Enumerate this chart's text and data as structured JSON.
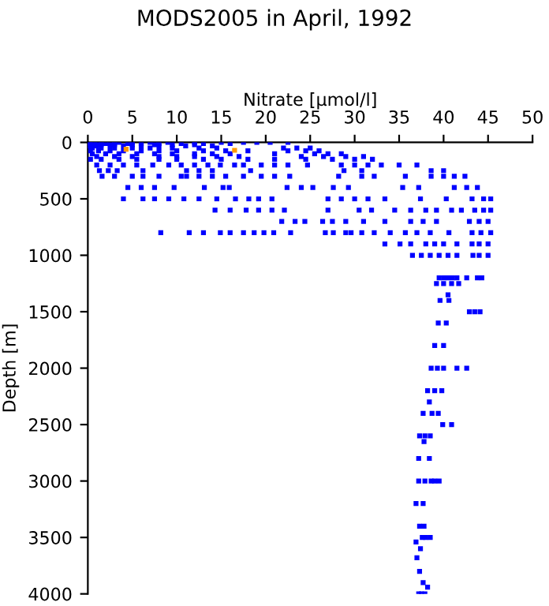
{
  "chart_data": {
    "type": "scatter",
    "title": "MODS2005 in April, 1992",
    "xlabel": "Nitrate [µmol/l]",
    "ylabel": "Depth [m]",
    "xlim": [
      0,
      50
    ],
    "xticks": [
      0,
      5,
      10,
      15,
      20,
      25,
      30,
      35,
      40,
      45,
      50
    ],
    "ylim": [
      4000,
      0
    ],
    "yticks": [
      0,
      500,
      1000,
      1500,
      2000,
      2500,
      3000,
      3500,
      4000
    ],
    "grid": false,
    "marker": "square",
    "series": [
      {
        "color": "#0000ff",
        "x": [
          0.2,
          0.8,
          1.5,
          2.5,
          3.5,
          5,
          7,
          9,
          12,
          15,
          17.5,
          19,
          20.5,
          22.5,
          0.3,
          1,
          2,
          3,
          4.5,
          6,
          8,
          10.5,
          13,
          16,
          0.5,
          1.5,
          3,
          5,
          7.5,
          9.5,
          12,
          0.2,
          1,
          2.5,
          4,
          6,
          8,
          11,
          14,
          0.5,
          1.5,
          3,
          5,
          7,
          9.5,
          12.5,
          14.5,
          22,
          23.5,
          25,
          0.3,
          1.2,
          2.5,
          4,
          6,
          8,
          10,
          13,
          15.5,
          18,
          22.5,
          24.5,
          26,
          0.5,
          2,
          3.5,
          5.5,
          7.5,
          9.5,
          12,
          14,
          16,
          21,
          25.5,
          27,
          28.5,
          1,
          3,
          5,
          8,
          10,
          12,
          14.5,
          17,
          24,
          26.5,
          29,
          31,
          0.3,
          1.5,
          3.5,
          5.5,
          8,
          10,
          13,
          15,
          18,
          21,
          24.5,
          27.5,
          30,
          32,
          1,
          2.5,
          4,
          5.5,
          7.3,
          9.1,
          10.5,
          12,
          13.5,
          14.9,
          16.5,
          17.5,
          19.5,
          21,
          22.5,
          24.7,
          28.5,
          30,
          31.5,
          33,
          35,
          37,
          1.3,
          2.3,
          3.3,
          6.2,
          11.1,
          12.5,
          14,
          18.3,
          28.8,
          30.8,
          38.6,
          40,
          1.6,
          3,
          5,
          6.2,
          8,
          10.5,
          11.1,
          12.5,
          14,
          15.5,
          17.5,
          19.5,
          21,
          22.7,
          28.2,
          30.8,
          32.2,
          35.7,
          38.6,
          40,
          41.2,
          42.4,
          4.5,
          6,
          7.5,
          9.7,
          13.1,
          15.2,
          15.9,
          22.4,
          24,
          25.3,
          27.6,
          29.3,
          35.4,
          37.2,
          41.2,
          42.6,
          43.8,
          4,
          6.2,
          7.5,
          9.1,
          10.8,
          12.5,
          14.5,
          16.6,
          18.1,
          19.2,
          20.7,
          27,
          28.5,
          30,
          31.5,
          33.4,
          37.4,
          40.3,
          43.2,
          44.5,
          45.3,
          14.3,
          16,
          17.8,
          19.2,
          20.7,
          22.1,
          27,
          30.5,
          31.9,
          34.5,
          36.3,
          38,
          39.2,
          40.9,
          42,
          43.5,
          44.5,
          45.3,
          21.8,
          23.3,
          24.4,
          26.4,
          27.5,
          29,
          31,
          33.4,
          36.3,
          37.7,
          39.2,
          42.9,
          44,
          45,
          8.2,
          11.4,
          13,
          14.9,
          16,
          17.5,
          18.7,
          19.8,
          20.9,
          22.8,
          26.7,
          27.6,
          29,
          29.6,
          30.8,
          32.2,
          34,
          35.7,
          37,
          38.5,
          40.6,
          43.2,
          44.2,
          45.3,
          33.4,
          35.1,
          36.3,
          38,
          39,
          40,
          41.5,
          43.2,
          44,
          45,
          36.5,
          37.5,
          38.5,
          39.5,
          40.5,
          41.5,
          43.3,
          44,
          45,
          39.5,
          40,
          40.5,
          41,
          41.5,
          42.6,
          43.8,
          44.3,
          39.2,
          40,
          40.9,
          41.7,
          40.5,
          39.6,
          40.6,
          42.9,
          43.5,
          44.1,
          39.4,
          40.3,
          39,
          40,
          38.6,
          39.3,
          40,
          41.5,
          42.6,
          38.2,
          39,
          39.8,
          38.4,
          37.7,
          38.7,
          39.4,
          39.9,
          40.9,
          37.3,
          37.9,
          38.5,
          37.8,
          37.2,
          38.4,
          37.2,
          37.9,
          38.6,
          39,
          39.5,
          36.9,
          37.7,
          37.3,
          37.8,
          37.6,
          38,
          38.5,
          36.9,
          37.4,
          37,
          37.3,
          37.7,
          38.2,
          37.2,
          37.5,
          37.9
        ],
        "values": [
          0,
          0,
          0,
          0,
          0,
          0,
          0,
          0,
          0,
          0,
          0,
          0,
          0,
          0,
          10,
          10,
          10,
          10,
          10,
          10,
          10,
          10,
          10,
          10,
          20,
          20,
          20,
          20,
          20,
          20,
          20,
          30,
          30,
          30,
          30,
          30,
          30,
          30,
          30,
          50,
          50,
          50,
          50,
          50,
          50,
          50,
          50,
          50,
          50,
          50,
          75,
          75,
          75,
          75,
          75,
          75,
          75,
          75,
          75,
          75,
          75,
          75,
          75,
          100,
          100,
          100,
          100,
          100,
          100,
          100,
          100,
          100,
          100,
          100,
          100,
          100,
          125,
          125,
          125,
          125,
          125,
          125,
          125,
          125,
          125,
          125,
          125,
          125,
          150,
          150,
          150,
          150,
          150,
          150,
          150,
          150,
          150,
          150,
          150,
          150,
          150,
          150,
          200,
          200,
          200,
          200,
          200,
          200,
          200,
          200,
          200,
          200,
          200,
          200,
          200,
          200,
          200,
          200,
          200,
          200,
          200,
          200,
          200,
          200,
          250,
          250,
          250,
          250,
          250,
          250,
          250,
          250,
          250,
          250,
          250,
          250,
          300,
          300,
          300,
          300,
          300,
          300,
          300,
          300,
          300,
          300,
          300,
          300,
          300,
          300,
          300,
          300,
          300,
          300,
          300,
          300,
          300,
          300,
          400,
          400,
          400,
          400,
          400,
          400,
          400,
          400,
          400,
          400,
          400,
          400,
          400,
          400,
          400,
          400,
          400,
          500,
          500,
          500,
          500,
          500,
          500,
          500,
          500,
          500,
          500,
          500,
          500,
          500,
          500,
          500,
          500,
          500,
          500,
          500,
          500,
          500,
          600,
          600,
          600,
          600,
          600,
          600,
          600,
          600,
          600,
          600,
          600,
          600,
          600,
          600,
          600,
          600,
          600,
          600,
          700,
          700,
          700,
          700,
          700,
          700,
          700,
          700,
          700,
          700,
          700,
          700,
          700,
          700,
          800,
          800,
          800,
          800,
          800,
          800,
          800,
          800,
          800,
          800,
          800,
          800,
          800,
          800,
          800,
          800,
          800,
          800,
          800,
          800,
          800,
          800,
          800,
          800,
          900,
          900,
          900,
          900,
          900,
          900,
          900,
          900,
          900,
          900,
          1000,
          1000,
          1000,
          1000,
          1000,
          1000,
          1000,
          1000,
          1000,
          1200,
          1200,
          1200,
          1200,
          1200,
          1200,
          1200,
          1200,
          1250,
          1250,
          1250,
          1250,
          1350,
          1400,
          1400,
          1500,
          1500,
          1500,
          1600,
          1600,
          1800,
          1800,
          2000,
          2000,
          2000,
          2000,
          2000,
          2200,
          2200,
          2200,
          2300,
          2400,
          2400,
          2400,
          2500,
          2500,
          2600,
          2600,
          2600,
          2650,
          2800,
          2800,
          3000,
          3000,
          3000,
          3000,
          3000,
          3200,
          3200,
          3400,
          3400,
          3500,
          3500,
          3500,
          3540,
          3600,
          3680,
          3800,
          3900,
          3940,
          4000,
          4000,
          4000
        ]
      },
      {
        "color": "#ff9900",
        "x": [
          4.3,
          16.5
        ],
        "values": [
          60,
          70
        ]
      }
    ]
  }
}
